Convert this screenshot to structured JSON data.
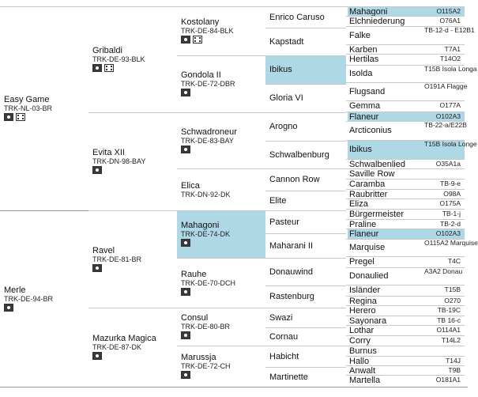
{
  "pedigree": {
    "g1": [
      {
        "name": "Easy Game",
        "reg": "TRK-NL-03-BR",
        "icons": [
          "photo-icon",
          "video-icon"
        ]
      },
      {
        "name": "Merle",
        "reg": "TRK-DE-94-BR",
        "icons": [
          "photo-icon"
        ]
      }
    ],
    "g2": [
      {
        "name": "Gribaldi",
        "reg": "TRK-DE-93-BLK",
        "icons": [
          "photo-icon",
          "video-icon"
        ]
      },
      {
        "name": "Evita XII",
        "reg": "TRK-DN-98-BAY",
        "icons": [
          "photo-icon"
        ]
      },
      {
        "name": "Ravel",
        "reg": "TRK-DE-81-BR",
        "icons": [
          "photo-icon"
        ]
      },
      {
        "name": "Mazurka Magica",
        "reg": "TRK-DE-87-DK",
        "icons": [
          "photo-icon"
        ]
      }
    ],
    "g3": [
      {
        "name": "Kostolany",
        "reg": "TRK-DE-84-BLK",
        "icons": [
          "photo-icon",
          "video-icon"
        ]
      },
      {
        "name": "Gondola II",
        "reg": "TRK-DE-72-DBR",
        "icons": [
          "photo-icon"
        ]
      },
      {
        "name": "Schwadroneur",
        "reg": "TRK-DE-83-BAY",
        "icons": [
          "photo-icon"
        ]
      },
      {
        "name": "Elica",
        "reg": "TRK-DN-92-DK",
        "icons": []
      },
      {
        "name": "Mahagoni",
        "reg": "TRK-DE-74-DK",
        "icons": [
          "photo-icon"
        ],
        "highlight": true
      },
      {
        "name": "Rauhe",
        "reg": "TRK-DE-70-DCH",
        "icons": [
          "photo-icon"
        ]
      },
      {
        "name": "Consul",
        "reg": "TRK-DE-80-BR",
        "icons": [
          "photo-icon"
        ]
      },
      {
        "name": "Marussja",
        "reg": "TRK-DE-72-CH",
        "icons": [
          "photo-icon"
        ]
      }
    ],
    "g4": [
      {
        "name": "Enrico Caruso"
      },
      {
        "name": "Kapstadt"
      },
      {
        "name": "Ibikus",
        "highlight": true
      },
      {
        "name": "Gloria VI"
      },
      {
        "name": "Arogno"
      },
      {
        "name": "Schwalbenburg"
      },
      {
        "name": "Cannon Row"
      },
      {
        "name": "Elite"
      },
      {
        "name": "Pasteur"
      },
      {
        "name": "Maharani II"
      },
      {
        "name": "Donauwind"
      },
      {
        "name": "Rastenburg"
      },
      {
        "name": "Swazi"
      },
      {
        "name": "Cornau"
      },
      {
        "name": "Habicht"
      },
      {
        "name": "Martinette"
      }
    ],
    "g5": [
      {
        "name": "Mahagoni",
        "reg": "O115A2",
        "highlight": true
      },
      {
        "name": "Elchniederung",
        "reg": "O76A1"
      },
      {
        "name": "Falke",
        "reg": "TB-12-d - E12B1"
      },
      {
        "name": "Karben",
        "reg": "T7A1"
      },
      {
        "name": "Hertilas",
        "reg": "T14O2"
      },
      {
        "name": "Isolda",
        "reg": "T15B Isola Longa"
      },
      {
        "name": "Flugsand",
        "reg": "O191A Flagge"
      },
      {
        "name": "Gemma",
        "reg": "O177A"
      },
      {
        "name": "Flaneur",
        "reg": "O102A3",
        "highlight": true
      },
      {
        "name": "Arcticonius",
        "reg": "TB-22-a/E22B"
      },
      {
        "name": "Ibikus",
        "reg": "T15B Isola Longe",
        "highlight": true
      },
      {
        "name": "Schwalbenlied",
        "reg": "O35A1a"
      },
      {
        "name": "Saville Row",
        "reg": ""
      },
      {
        "name": "Caramba",
        "reg": "TB-9-e"
      },
      {
        "name": "Raubritter",
        "reg": "O98A"
      },
      {
        "name": "Eliza",
        "reg": "O175A"
      },
      {
        "name": "Bürgermeister",
        "reg": "TB-1-j"
      },
      {
        "name": "Praline",
        "reg": "TB-2-d"
      },
      {
        "name": "Flaneur",
        "reg": "O102A3",
        "highlight": true
      },
      {
        "name": "Marquise",
        "reg": "O115A2 Marquise"
      },
      {
        "name": "Pregel",
        "reg": "T4C"
      },
      {
        "name": "Donaulied",
        "reg": "A3A2 Donau"
      },
      {
        "name": "Isländer",
        "reg": "T15B"
      },
      {
        "name": "Regina",
        "reg": "O270"
      },
      {
        "name": "Herero",
        "reg": "TB-19C"
      },
      {
        "name": "Sayonara",
        "reg": "TB 16-c"
      },
      {
        "name": "Lothar",
        "reg": "O114A1"
      },
      {
        "name": "Corry",
        "reg": "T14L2"
      },
      {
        "name": "Burnus",
        "reg": ""
      },
      {
        "name": "Hallo",
        "reg": "T14J"
      },
      {
        "name": "Anwalt",
        "reg": "T9B"
      },
      {
        "name": "Martella",
        "reg": "O181A1"
      }
    ]
  },
  "colors": {
    "highlight": "#aed8e6",
    "divider": "#c8c8c8"
  }
}
